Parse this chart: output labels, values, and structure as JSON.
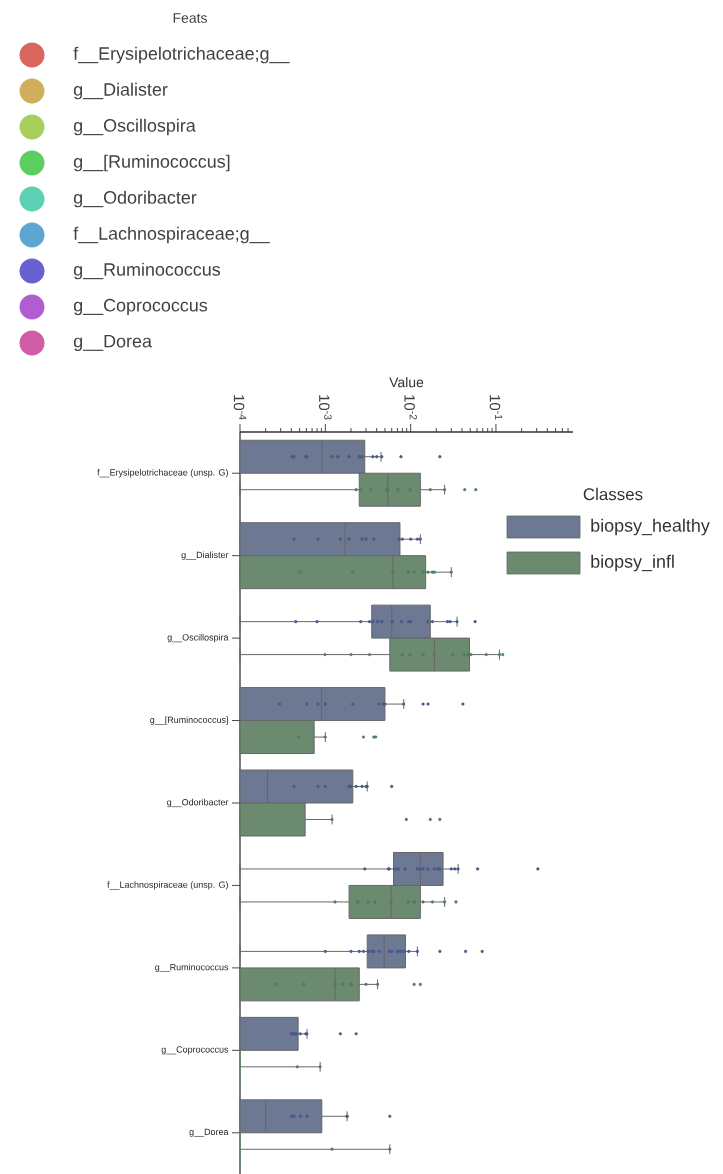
{
  "chart_data": [
    {
      "type": "other",
      "legend_title": "Feats",
      "categories": [
        "f__Erysipelotrichaceae;g__",
        "g__Dialister",
        "g__Oscillospira",
        "g__[Ruminococcus]",
        "g__Odoribacter",
        "f__Lachnospiraceae;g__",
        "g__Ruminococcus",
        "g__Coprococcus",
        "g__Dorea"
      ],
      "colors": [
        "#d9665c",
        "#d1ae5b",
        "#a6cf5c",
        "#5ccf62",
        "#5cd1b4",
        "#5ca6d1",
        "#6960d1",
        "#b15cd1",
        "#d15ca6"
      ]
    },
    {
      "type": "box",
      "orientation": "horizontal",
      "log": "x",
      "xlabel": "Value",
      "legend_title": "Classes",
      "legend": "top right",
      "marker": "circle",
      "categories": [
        "f__Erysipelotrichaceae (unsp. G)",
        "g__Dialister",
        "g__Oscillospira",
        "g__[Ruminococcus]",
        "g__Odoribacter",
        "f__Lachnospiraceae (unsp. G)",
        "g__Ruminococcus",
        "g__Coprococcus",
        "g__Dorea"
      ],
      "xlim": [
        0.0001,
        0.8
      ],
      "xticks": [
        {
          "value": 0.0001,
          "label": "10$^{-4}$"
        },
        {
          "value": 0.001,
          "label": "10$^{-3}$"
        },
        {
          "value": 0.01,
          "label": "10$^{-2}$"
        },
        {
          "value": 0.1,
          "label": "10$^{-1}$"
        }
      ],
      "series": [
        {
          "name": "biopsy_healthy",
          "color": "#6d7893",
          "boxes": [
            {
              "low": 0.0001,
              "q1": 0.0001,
              "median": 0.00091,
              "q3": 0.0029,
              "high": 0.0045
            },
            {
              "low": 0.0001,
              "q1": 0.0001,
              "median": 0.0017,
              "q3": 0.0075,
              "high": 0.013
            },
            {
              "low": 0.0001,
              "q1": 0.0035,
              "median": 0.006,
              "q3": 0.017,
              "high": 0.035
            },
            {
              "low": 0.0001,
              "q1": 0.0001,
              "median": 0.0009,
              "q3": 0.005,
              "high": 0.0083
            },
            {
              "low": 0.0001,
              "q1": 0.0001,
              "median": 0.00021,
              "q3": 0.0021,
              "high": 0.0031
            },
            {
              "low": 0.0001,
              "q1": 0.0063,
              "median": 0.013,
              "q3": 0.024,
              "high": 0.036
            },
            {
              "low": 0.0001,
              "q1": 0.0031,
              "median": 0.0049,
              "q3": 0.0087,
              "high": 0.012
            },
            {
              "low": 0.0001,
              "q1": 0.0001,
              "median": 0.0001,
              "q3": 0.00048,
              "high": 0.00061
            },
            {
              "low": 0.0001,
              "q1": 0.0001,
              "median": 0.0002,
              "q3": 0.00091,
              "high": 0.0018
            }
          ]
        },
        {
          "name": "biopsy_infl",
          "color": "#6b8a6f",
          "boxes": [
            {
              "low": 0.0001,
              "q1": 0.0025,
              "median": 0.0054,
              "q3": 0.013,
              "high": 0.025
            },
            {
              "low": 0.0001,
              "q1": 0.0001,
              "median": 0.0062,
              "q3": 0.015,
              "high": 0.03
            },
            {
              "low": 0.0001,
              "q1": 0.0057,
              "median": 0.019,
              "q3": 0.049,
              "high": 0.11
            },
            {
              "low": 0.0001,
              "q1": 0.0001,
              "median": 0.0001,
              "q3": 0.00074,
              "high": 0.001
            },
            {
              "low": 0.0001,
              "q1": 0.0001,
              "median": 0.0001,
              "q3": 0.00058,
              "high": 0.0012
            },
            {
              "low": 0.0001,
              "q1": 0.0019,
              "median": 0.0059,
              "q3": 0.013,
              "high": 0.025
            },
            {
              "low": 0.0001,
              "q1": 0.0001,
              "median": 0.0013,
              "q3": 0.0025,
              "high": 0.0041
            },
            {
              "low": 0.0001,
              "q1": 0.0001,
              "median": 0.0001,
              "q3": 0.0001,
              "high": 0.00087
            },
            {
              "low": 0.0001,
              "q1": 0.0001,
              "median": 0.0001,
              "q3": 0.0001,
              "high": 0.0057
            }
          ]
        },
        {
          "type": "scatter",
          "color": "#4a5f95",
          "x": [
            "f__Erysipelotrichaceae (unsp. G)",
            "f__Erysipelotrichaceae (unsp. G)",
            "f__Erysipelotrichaceae (unsp. G)",
            "f__Erysipelotrichaceae (unsp. G)",
            "f__Erysipelotrichaceae (unsp. G)",
            "f__Erysipelotrichaceae (unsp. G)",
            "f__Erysipelotrichaceae (unsp. G)",
            "f__Erysipelotrichaceae (unsp. G)",
            "f__Erysipelotrichaceae (unsp. G)",
            "f__Erysipelotrichaceae (unsp. G)",
            "f__Erysipelotrichaceae (unsp. G)",
            "f__Erysipelotrichaceae (unsp. G)",
            "f__Erysipelotrichaceae (unsp. G)",
            "f__Erysipelotrichaceae (unsp. G)",
            "g__Dialister",
            "g__Dialister",
            "g__Dialister",
            "g__Dialister",
            "g__Dialister",
            "g__Dialister",
            "g__Dialister",
            "g__Dialister",
            "g__Dialister",
            "g__Dialister",
            "g__Dialister",
            "g__Dialister",
            "g__Oscillospira",
            "g__Oscillospira",
            "g__Oscillospira",
            "g__Oscillospira",
            "g__Oscillospira",
            "g__Oscillospira",
            "g__Oscillospira",
            "g__Oscillospira",
            "g__Oscillospira",
            "g__Oscillospira",
            "g__Oscillospira",
            "g__Oscillospira",
            "g__Oscillospira",
            "g__Oscillospira",
            "g__Oscillospira",
            "g__Oscillospira",
            "g__Oscillospira",
            "g__[Ruminococcus]",
            "g__[Ruminococcus]",
            "g__[Ruminococcus]",
            "g__[Ruminococcus]",
            "g__[Ruminococcus]",
            "g__[Ruminococcus]",
            "g__[Ruminococcus]",
            "g__[Ruminococcus]",
            "g__[Ruminococcus]",
            "g__[Ruminococcus]",
            "g__[Ruminococcus]",
            "g__[Ruminococcus]",
            "g__Odoribacter",
            "g__Odoribacter",
            "g__Odoribacter",
            "g__Odoribacter",
            "g__Odoribacter",
            "g__Odoribacter",
            "g__Odoribacter",
            "g__Odoribacter",
            "g__Odoribacter",
            "g__Odoribacter",
            "f__Lachnospiraceae (unsp. G)",
            "f__Lachnospiraceae (unsp. G)",
            "f__Lachnospiraceae (unsp. G)",
            "f__Lachnospiraceae (unsp. G)",
            "f__Lachnospiraceae (unsp. G)",
            "f__Lachnospiraceae (unsp. G)",
            "f__Lachnospiraceae (unsp. G)",
            "f__Lachnospiraceae (unsp. G)",
            "f__Lachnospiraceae (unsp. G)",
            "f__Lachnospiraceae (unsp. G)",
            "f__Lachnospiraceae (unsp. G)",
            "f__Lachnospiraceae (unsp. G)",
            "f__Lachnospiraceae (unsp. G)",
            "f__Lachnospiraceae (unsp. G)",
            "f__Lachnospiraceae (unsp. G)",
            "f__Lachnospiraceae (unsp. G)",
            "f__Lachnospiraceae (unsp. G)",
            "f__Lachnospiraceae (unsp. G)",
            "g__Ruminococcus",
            "g__Ruminococcus",
            "g__Ruminococcus",
            "g__Ruminococcus",
            "g__Ruminococcus",
            "g__Ruminococcus",
            "g__Ruminococcus",
            "g__Ruminococcus",
            "g__Ruminococcus",
            "g__Ruminococcus",
            "g__Ruminococcus",
            "g__Ruminococcus",
            "g__Ruminococcus",
            "g__Ruminococcus",
            "g__Ruminococcus",
            "g__Ruminococcus",
            "g__Ruminococcus",
            "g__Ruminococcus",
            "g__Coprococcus",
            "g__Coprococcus",
            "g__Coprococcus",
            "g__Coprococcus",
            "g__Coprococcus",
            "g__Coprococcus",
            "g__Coprococcus",
            "g__Coprococcus",
            "g__Coprococcus",
            "g__Dorea",
            "g__Dorea",
            "g__Dorea",
            "g__Dorea",
            "g__Dorea",
            "g__Dorea",
            "g__Dorea"
          ],
          "values": [
            0.00041,
            0.00043,
            0.00059,
            0.00061,
            0.0012,
            0.0014,
            0.0019,
            0.0025,
            0.0027,
            0.0036,
            0.004,
            0.0046,
            0.0077,
            0.022,
            0.00043,
            0.00082,
            0.0015,
            0.0019,
            0.0027,
            0.003,
            0.0037,
            0.0073,
            0.008,
            0.01,
            0.012,
            0.013,
            0.00045,
            0.0008,
            0.0026,
            0.0033,
            0.0036,
            0.0041,
            0.0046,
            0.0061,
            0.0078,
            0.0095,
            0.01,
            0.016,
            0.018,
            0.027,
            0.029,
            0.035,
            0.057,
            0.00029,
            0.00061,
            0.00082,
            0.001,
            0.0021,
            0.0043,
            0.0048,
            0.005,
            0.0083,
            0.014,
            0.016,
            0.041,
            0.00043,
            0.00082,
            0.001,
            0.0019,
            0.002,
            0.0023,
            0.0027,
            0.003,
            0.0031,
            0.006,
            0.0029,
            0.0055,
            0.0056,
            0.0066,
            0.0072,
            0.0086,
            0.012,
            0.013,
            0.014,
            0.016,
            0.019,
            0.021,
            0.022,
            0.03,
            0.033,
            0.036,
            0.061,
            0.31,
            0.001,
            0.002,
            0.0025,
            0.0028,
            0.0032,
            0.0035,
            0.0037,
            0.0043,
            0.0056,
            0.006,
            0.007,
            0.0076,
            0.0083,
            0.0095,
            0.012,
            0.022,
            0.044,
            0.069,
            0.0004,
            0.00042,
            0.00044,
            0.00046,
            0.00051,
            0.00059,
            0.00061,
            0.0015,
            0.0023,
            0.0004,
            0.00043,
            0.00051,
            0.00061,
            0.0018,
            0.0018,
            0.0057
          ]
        },
        {
          "type": "scatter",
          "color": "#4f8a58",
          "x": [
            "f__Erysipelotrichaceae (unsp. G)",
            "f__Erysipelotrichaceae (unsp. G)",
            "f__Erysipelotrichaceae (unsp. G)",
            "f__Erysipelotrichaceae (unsp. G)",
            "f__Erysipelotrichaceae (unsp. G)",
            "f__Erysipelotrichaceae (unsp. G)",
            "f__Erysipelotrichaceae (unsp. G)",
            "f__Erysipelotrichaceae (unsp. G)",
            "f__Erysipelotrichaceae (unsp. G)",
            "f__Erysipelotrichaceae (unsp. G)",
            "f__Erysipelotrichaceae (unsp. G)",
            "g__Dialister",
            "g__Dialister",
            "g__Dialister",
            "g__Dialister",
            "g__Dialister",
            "g__Dialister",
            "g__Dialister",
            "g__Dialister",
            "g__Dialister",
            "g__Dialister",
            "g__Oscillospira",
            "g__Oscillospira",
            "g__Oscillospira",
            "g__Oscillospira",
            "g__Oscillospira",
            "g__Oscillospira",
            "g__Oscillospira",
            "g__Oscillospira",
            "g__Oscillospira",
            "g__Oscillospira",
            "g__Oscillospira",
            "g__Oscillospira",
            "g__Oscillospira",
            "g__Oscillospira",
            "g__[Ruminococcus]",
            "g__[Ruminococcus]",
            "g__[Ruminococcus]",
            "g__[Ruminococcus]",
            "g__[Ruminococcus]",
            "g__Odoribacter",
            "g__Odoribacter",
            "g__Odoribacter",
            "g__Odoribacter",
            "f__Lachnospiraceae (unsp. G)",
            "f__Lachnospiraceae (unsp. G)",
            "f__Lachnospiraceae (unsp. G)",
            "f__Lachnospiraceae (unsp. G)",
            "f__Lachnospiraceae (unsp. G)",
            "f__Lachnospiraceae (unsp. G)",
            "f__Lachnospiraceae (unsp. G)",
            "f__Lachnospiraceae (unsp. G)",
            "f__Lachnospiraceae (unsp. G)",
            "f__Lachnospiraceae (unsp. G)",
            "f__Lachnospiraceae (unsp. G)",
            "f__Lachnospiraceae (unsp. G)",
            "g__Ruminococcus",
            "g__Ruminococcus",
            "g__Ruminococcus",
            "g__Ruminococcus",
            "g__Ruminococcus",
            "g__Ruminococcus",
            "g__Ruminococcus",
            "g__Ruminococcus",
            "g__Ruminococcus",
            "g__Ruminococcus",
            "g__Coprococcus",
            "g__Coprococcus",
            "g__Dorea",
            "g__Dorea"
          ],
          "values": [
            0.0023,
            0.0026,
            0.0034,
            0.0052,
            0.0054,
            0.0071,
            0.0098,
            0.017,
            0.025,
            0.043,
            0.058,
            0.00051,
            0.0021,
            0.0062,
            0.0094,
            0.011,
            0.014,
            0.016,
            0.018,
            0.019,
            0.03,
            0.00099,
            0.002,
            0.0033,
            0.008,
            0.0098,
            0.014,
            0.019,
            0.031,
            0.042,
            0.047,
            0.051,
            0.077,
            0.11,
            0.12,
            0.00049,
            0.001,
            0.0028,
            0.0037,
            0.0039,
            0.0012,
            0.0089,
            0.017,
            0.022,
            0.0013,
            0.0024,
            0.0032,
            0.0038,
            0.0059,
            0.0094,
            0.011,
            0.011,
            0.014,
            0.018,
            0.025,
            0.034,
            0.00026,
            0.00056,
            0.0013,
            0.0016,
            0.002,
            0.002,
            0.003,
            0.0041,
            0.011,
            0.013,
            0.00047,
            0.00087,
            0.0012,
            0.0057
          ]
        }
      ]
    }
  ]
}
